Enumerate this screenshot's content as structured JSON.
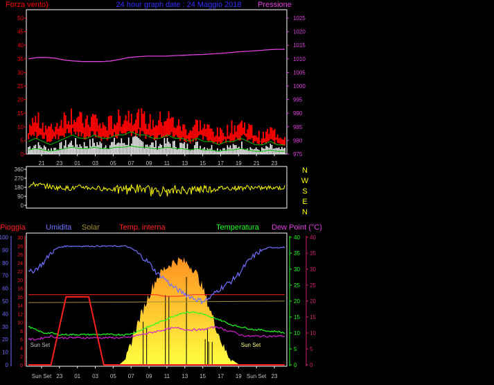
{
  "colors": {
    "background": "#000000",
    "wind": "#ff0000",
    "gust": "#ff0000",
    "pressure": "#e040e0",
    "title": "#3030ff",
    "white_bars": "#ffffff",
    "green": "#00c000",
    "direction": "#ffff00",
    "humidity": "#7070ff",
    "solar": "#a09030",
    "temp_interna": "#ff2020",
    "temperatura": "#20ff20",
    "dew_point": "#d020d0",
    "rain": "#ff2020",
    "fill_low": "#ffff40",
    "fill_high": "#ff9020",
    "axis_rain": "#ff2020",
    "axis_humidity": "#7070ff",
    "axis_temp": "#20ff20",
    "axis_dew": "#d02070",
    "axis_text": "#c0c0c0"
  },
  "chart_data": [
    {
      "type": "line",
      "title": "24 hour graph date : 24 Maggio 2018",
      "left_label": "Forza vento)",
      "right_label": "Pressione",
      "y_left_ticks": [
        "50",
        "45",
        "40",
        "35",
        "30",
        "25",
        "20",
        "15",
        "10",
        "5",
        "0"
      ],
      "ylim_left": [
        0,
        50
      ],
      "y_right_ticks": [
        "1025",
        "1020",
        "1015",
        "1010",
        "1005",
        "1000",
        "995",
        "990",
        "985",
        "980",
        "975"
      ],
      "ylim_right": [
        975,
        1025
      ],
      "x_ticks": [
        "21",
        "23",
        "01",
        "03",
        "05",
        "07",
        "09",
        "11",
        "13",
        "15",
        "17",
        "19",
        "21",
        "23"
      ],
      "series": [
        {
          "key": "pressure",
          "values": [
            1010,
            1010.5,
            1010.5,
            1010.2,
            1009.5,
            1009.2,
            1009,
            1009,
            1009,
            1009.2,
            1009.8,
            1010.5,
            1010.8,
            1011,
            1011,
            1011,
            1011.2,
            1011.3,
            1011.5,
            1011.6,
            1011.8,
            1012,
            1012.3,
            1012.6,
            1012.8,
            1013,
            1013.3,
            1013.5,
            1013.5
          ]
        },
        {
          "key": "wind_gust",
          "values": [
            8,
            10,
            9,
            7,
            9,
            11,
            12,
            10,
            9,
            11,
            8,
            9,
            10,
            11,
            12,
            11,
            10,
            9,
            10,
            11,
            9,
            8,
            7,
            9,
            8,
            7,
            6,
            7,
            8,
            9,
            8,
            6,
            5,
            7,
            6,
            5
          ]
        },
        {
          "key": "wind_avg",
          "values": [
            3,
            4,
            3,
            2,
            3,
            4,
            5,
            4,
            4,
            5,
            4,
            4,
            5,
            5,
            6,
            5,
            5,
            4,
            4,
            5,
            4,
            4,
            3,
            4,
            3,
            3,
            2,
            3,
            3,
            4,
            3,
            2,
            2,
            3,
            2,
            2
          ]
        }
      ]
    },
    {
      "type": "line",
      "y_ticks": [
        "360",
        "270",
        "180",
        "90",
        "0"
      ],
      "ylim": [
        0,
        360
      ],
      "right_labels": [
        "N",
        "W",
        "S",
        "E",
        "N"
      ],
      "series": [
        {
          "key": "direction",
          "values": [
            200,
            210,
            190,
            180,
            175,
            170,
            185,
            175,
            170,
            165,
            160,
            170,
            165,
            160,
            150,
            145,
            140,
            150,
            155,
            160,
            170,
            165,
            175,
            170,
            175,
            180,
            170,
            175,
            180,
            175
          ]
        }
      ]
    },
    {
      "type": "line",
      "legend": [
        "Pioggia",
        "Umidita",
        "Solar",
        "Temp. interna",
        "Temperatura",
        "Dew Point (°C)"
      ],
      "axis_rain_ticks": [
        "30",
        "28",
        "26",
        "24",
        "22",
        "20",
        "18",
        "16",
        "14",
        "12",
        "10",
        "8",
        "6",
        "4",
        "2",
        "0"
      ],
      "axis_humidity_ticks": [
        "100",
        "90",
        "80",
        "70",
        "60",
        "50",
        "40",
        "30",
        "20",
        "10",
        "0"
      ],
      "axis_temp_ticks": [
        "40",
        "35",
        "30",
        "25",
        "20",
        "15",
        "10",
        "5",
        "0"
      ],
      "axis_dew_ticks": [
        "40",
        "35",
        "30",
        "25",
        "20",
        "15",
        "10",
        "5",
        "0"
      ],
      "x_ticks": [
        "Sun Set",
        "23",
        "01",
        "03",
        "05",
        "07",
        "09",
        "11",
        "13",
        "15",
        "17",
        "19",
        "Sun Set",
        "23"
      ],
      "annotations": [
        "Sun Set",
        "Sun Set"
      ],
      "series": [
        {
          "key": "humidity",
          "values": [
            72,
            75,
            80,
            88,
            92,
            93,
            93,
            93,
            93,
            93,
            93,
            93,
            93,
            93,
            90,
            85,
            80,
            72,
            68,
            62,
            58,
            55,
            52,
            50,
            52,
            58,
            62,
            66,
            72,
            80,
            86,
            90,
            92,
            92,
            92
          ]
        },
        {
          "key": "temp_interna",
          "values": [
            22,
            22,
            22,
            22,
            22,
            22,
            22,
            22,
            22,
            22,
            22,
            22,
            22,
            22,
            22,
            22,
            22,
            22,
            21.5,
            21.5,
            21.5,
            21.8,
            22,
            22,
            22,
            22,
            22,
            22,
            22,
            22,
            22,
            22,
            22,
            22,
            22
          ]
        },
        {
          "key": "temperatura",
          "values": [
            12,
            11,
            10,
            10,
            9.5,
            9.5,
            9.5,
            9.5,
            9.5,
            9.5,
            9.5,
            9.5,
            9.5,
            9.5,
            10,
            11,
            12,
            13,
            14,
            15,
            16,
            16.5,
            16.5,
            16,
            15,
            14.5,
            13.5,
            12.5,
            12,
            11.5,
            11,
            11,
            10.5,
            10.5,
            10
          ]
        },
        {
          "key": "dew_point",
          "values": [
            8,
            8,
            8.5,
            9,
            8.5,
            8.5,
            8.5,
            8.5,
            8.5,
            8.5,
            8.5,
            8.5,
            8.5,
            8.5,
            9,
            9.5,
            10,
            10.5,
            11,
            11.5,
            11.5,
            11,
            11,
            11,
            11.5,
            12,
            11,
            10.5,
            9.5,
            9,
            9,
            9,
            9,
            9,
            9
          ]
        },
        {
          "key": "solar_pct",
          "values": [
            0,
            0,
            0,
            0,
            0,
            0,
            0,
            0,
            0,
            0,
            0,
            0,
            0,
            5,
            25,
            40,
            55,
            68,
            75,
            80,
            82,
            80,
            75,
            62,
            45,
            28,
            12,
            4,
            0,
            0,
            0,
            0,
            0,
            0,
            0
          ]
        },
        {
          "key": "rain_rate",
          "values": [
            0,
            0,
            0,
            0,
            8,
            16,
            16,
            16,
            16,
            8,
            0,
            0,
            0,
            0,
            0,
            0,
            0,
            0,
            0,
            0,
            0,
            0,
            0,
            0,
            0,
            0,
            0,
            0,
            0,
            0,
            0,
            0,
            0,
            0,
            0
          ]
        }
      ]
    }
  ]
}
